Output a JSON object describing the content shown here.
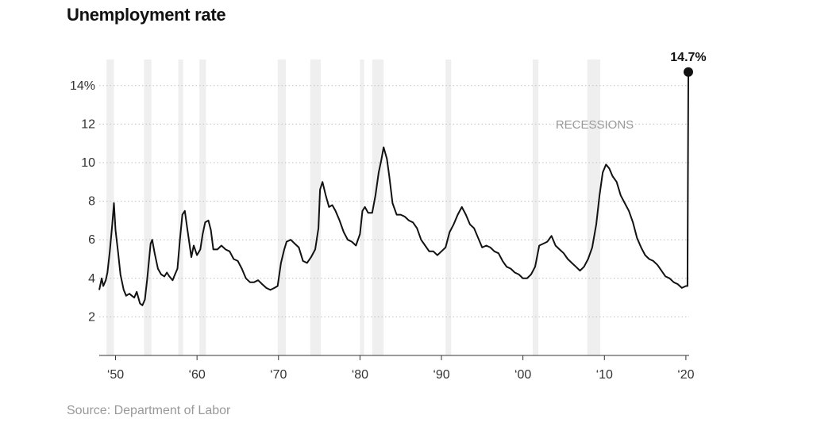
{
  "header": {
    "title": "Unemployment rate"
  },
  "footer": {
    "source": "Source: Department of Labor"
  },
  "chart_data": {
    "type": "line",
    "title": "Unemployment rate",
    "xlabel": "",
    "ylabel": "",
    "xlim": [
      1948,
      2020.4
    ],
    "ylim": [
      0,
      15.5
    ],
    "grid": true,
    "y_ticks": [
      {
        "value": 2,
        "label": "2"
      },
      {
        "value": 4,
        "label": "4"
      },
      {
        "value": 6,
        "label": "6"
      },
      {
        "value": 8,
        "label": "8"
      },
      {
        "value": 10,
        "label": "10"
      },
      {
        "value": 12,
        "label": "12"
      },
      {
        "value": 14,
        "label": "14%"
      }
    ],
    "x_ticks": [
      {
        "value": 1950,
        "label": "‘50"
      },
      {
        "value": 1960,
        "label": "‘60"
      },
      {
        "value": 1970,
        "label": "‘70"
      },
      {
        "value": 1980,
        "label": "‘80"
      },
      {
        "value": 1990,
        "label": "‘90"
      },
      {
        "value": 2000,
        "label": "‘00"
      },
      {
        "value": 2010,
        "label": "‘10"
      },
      {
        "value": 2020,
        "label": "‘20"
      }
    ],
    "recessions_label": "RECESSIONS",
    "recessions": [
      [
        1948.9,
        1949.8
      ],
      [
        1953.5,
        1954.4
      ],
      [
        1957.7,
        1958.3
      ],
      [
        1960.3,
        1961.1
      ],
      [
        1969.9,
        1970.9
      ],
      [
        1973.9,
        1975.2
      ],
      [
        1980.0,
        1980.5
      ],
      [
        1981.5,
        1982.9
      ],
      [
        1990.5,
        1991.2
      ],
      [
        2001.2,
        2001.9
      ],
      [
        2007.9,
        2009.5
      ]
    ],
    "recession_color": "#efefef",
    "line_color": "#121212",
    "annotation": {
      "x": 2020.3,
      "y": 14.7,
      "label": "14.7%"
    },
    "series": [
      {
        "x": [
          1948.0,
          1948.3,
          1948.5,
          1948.8,
          1949.0,
          1949.3,
          1949.6,
          1949.8,
          1950.0,
          1950.3,
          1950.6,
          1951.0,
          1951.3,
          1951.7,
          1952.0,
          1952.3,
          1952.6,
          1953.0,
          1953.3,
          1953.6,
          1953.9,
          1954.3,
          1954.5,
          1954.8,
          1955.2,
          1955.6,
          1956.0,
          1956.3,
          1956.6,
          1957.0,
          1957.3,
          1957.6,
          1957.9,
          1958.2,
          1958.5,
          1958.8,
          1959.0,
          1959.3,
          1959.6,
          1960.0,
          1960.4,
          1960.7,
          1961.0,
          1961.4,
          1961.7,
          1962.0,
          1962.5,
          1963.0,
          1963.5,
          1964.0,
          1964.5,
          1965.0,
          1965.5,
          1966.0,
          1966.5,
          1967.0,
          1967.5,
          1968.0,
          1968.5,
          1969.0,
          1969.5,
          1969.9,
          1970.3,
          1970.7,
          1971.0,
          1971.5,
          1972.0,
          1972.5,
          1973.0,
          1973.5,
          1974.0,
          1974.5,
          1974.9,
          1975.1,
          1975.4,
          1975.8,
          1976.2,
          1976.6,
          1977.0,
          1977.5,
          1978.0,
          1978.5,
          1979.0,
          1979.5,
          1980.0,
          1980.3,
          1980.6,
          1981.0,
          1981.5,
          1981.9,
          1982.3,
          1982.6,
          1982.9,
          1983.3,
          1983.6,
          1984.0,
          1984.5,
          1985.0,
          1985.5,
          1986.0,
          1986.5,
          1987.0,
          1987.5,
          1988.0,
          1988.5,
          1989.0,
          1989.5,
          1990.0,
          1990.5,
          1991.0,
          1991.5,
          1992.0,
          1992.5,
          1993.0,
          1993.5,
          1994.0,
          1994.5,
          1995.0,
          1995.5,
          1996.0,
          1996.5,
          1997.0,
          1997.5,
          1998.0,
          1998.5,
          1999.0,
          1999.5,
          2000.0,
          2000.5,
          2001.0,
          2001.5,
          2002.0,
          2002.5,
          2003.0,
          2003.5,
          2004.0,
          2004.5,
          2005.0,
          2005.5,
          2006.0,
          2006.5,
          2007.0,
          2007.5,
          2008.0,
          2008.5,
          2009.0,
          2009.4,
          2009.8,
          2010.2,
          2010.6,
          2011.0,
          2011.5,
          2012.0,
          2012.5,
          2013.0,
          2013.5,
          2014.0,
          2014.5,
          2015.0,
          2015.5,
          2016.0,
          2016.5,
          2017.0,
          2017.5,
          2018.0,
          2018.5,
          2019.0,
          2019.5,
          2020.0,
          2020.2,
          2020.3
        ],
        "values": [
          3.4,
          4.0,
          3.6,
          3.9,
          4.3,
          5.4,
          6.8,
          7.9,
          6.5,
          5.4,
          4.2,
          3.4,
          3.1,
          3.2,
          3.1,
          3.0,
          3.3,
          2.7,
          2.6,
          2.9,
          4.0,
          5.8,
          6.0,
          5.3,
          4.5,
          4.2,
          4.1,
          4.3,
          4.1,
          3.9,
          4.2,
          4.5,
          6.0,
          7.3,
          7.5,
          6.6,
          6.0,
          5.1,
          5.7,
          5.2,
          5.5,
          6.3,
          6.9,
          7.0,
          6.5,
          5.5,
          5.5,
          5.7,
          5.5,
          5.4,
          5.0,
          4.9,
          4.5,
          4.0,
          3.8,
          3.8,
          3.9,
          3.7,
          3.5,
          3.4,
          3.5,
          3.6,
          4.8,
          5.5,
          5.9,
          6.0,
          5.8,
          5.6,
          4.9,
          4.8,
          5.1,
          5.5,
          6.6,
          8.6,
          9.0,
          8.3,
          7.7,
          7.8,
          7.5,
          7.0,
          6.4,
          6.0,
          5.9,
          5.7,
          6.3,
          7.5,
          7.7,
          7.4,
          7.4,
          8.3,
          9.5,
          10.1,
          10.8,
          10.2,
          9.3,
          7.9,
          7.3,
          7.3,
          7.2,
          7.0,
          6.9,
          6.6,
          6.0,
          5.7,
          5.4,
          5.4,
          5.2,
          5.4,
          5.6,
          6.4,
          6.8,
          7.3,
          7.7,
          7.3,
          6.8,
          6.6,
          6.1,
          5.6,
          5.7,
          5.6,
          5.4,
          5.3,
          4.9,
          4.6,
          4.5,
          4.3,
          4.2,
          4.0,
          4.0,
          4.2,
          4.6,
          5.7,
          5.8,
          5.9,
          6.2,
          5.7,
          5.5,
          5.3,
          5.0,
          4.8,
          4.6,
          4.4,
          4.6,
          5.0,
          5.6,
          6.8,
          8.3,
          9.5,
          9.9,
          9.7,
          9.3,
          9.0,
          8.3,
          7.9,
          7.5,
          6.9,
          6.1,
          5.6,
          5.2,
          5.0,
          4.9,
          4.7,
          4.4,
          4.1,
          4.0,
          3.8,
          3.7,
          3.5,
          3.6,
          3.6,
          14.7
        ]
      }
    ]
  }
}
